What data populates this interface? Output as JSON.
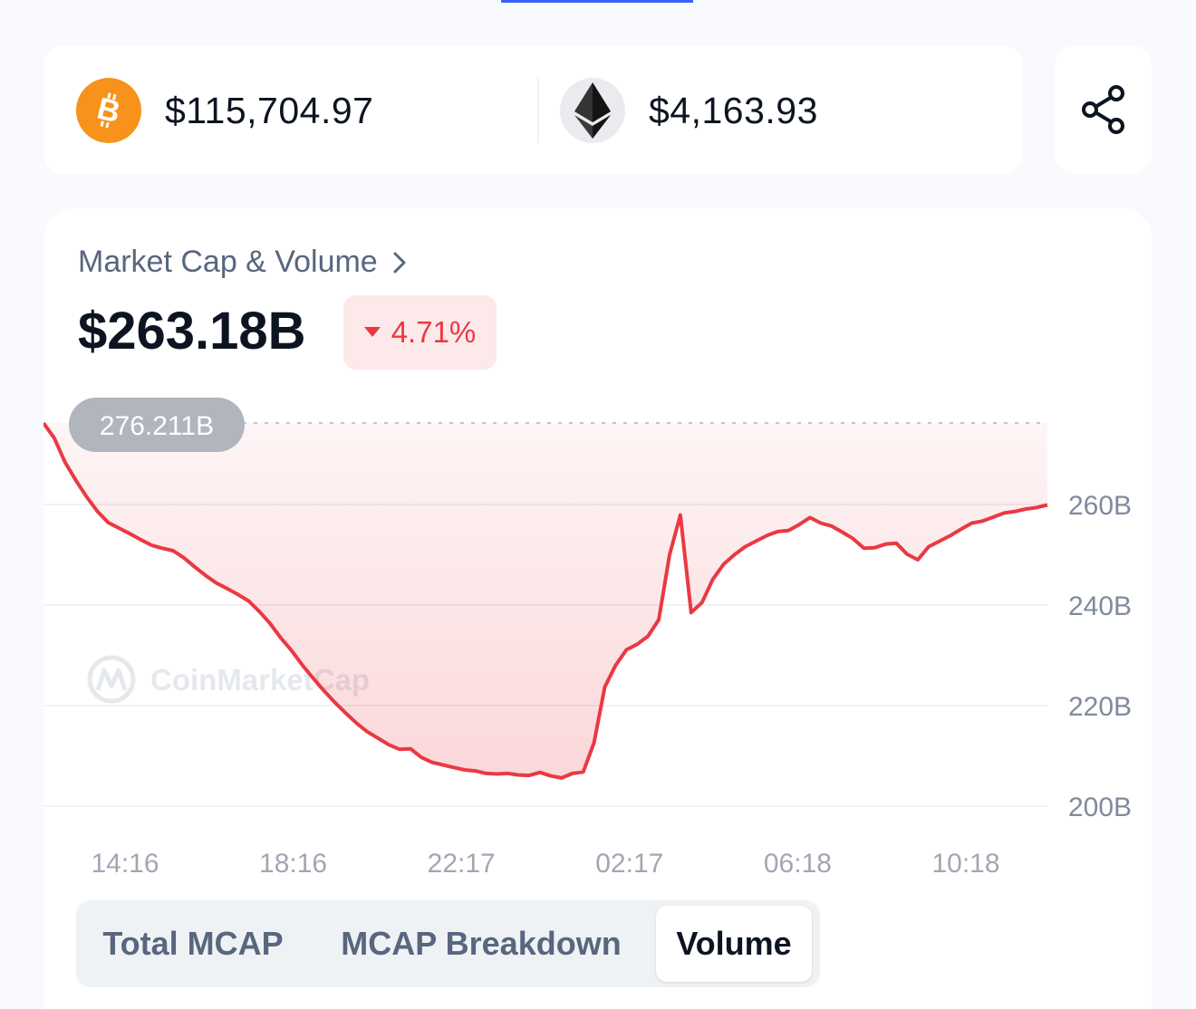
{
  "prices": {
    "btc": {
      "price": "$115,704.97",
      "icon": "bitcoin-icon",
      "color": "#f7931a"
    },
    "eth": {
      "price": "$4,163.93",
      "icon": "ethereum-icon"
    }
  },
  "share": {
    "icon": "share-icon"
  },
  "section": {
    "title": "Market Cap & Volume",
    "value": "$263.18B",
    "change": "4.71%",
    "change_direction": "down",
    "change_color": "#ea3943"
  },
  "watermark": {
    "text": "CoinMarketCap"
  },
  "chart_data": {
    "type": "area",
    "reference_label": "276.211B",
    "reference_value": 276.211,
    "ylim": [
      200,
      276.211
    ],
    "y_ticks": [
      {
        "label": "260B",
        "value": 260
      },
      {
        "label": "240B",
        "value": 240
      },
      {
        "label": "220B",
        "value": 220
      },
      {
        "label": "200B",
        "value": 200
      }
    ],
    "x_ticks": [
      "14:16",
      "18:16",
      "22:17",
      "02:17",
      "06:18",
      "10:18"
    ],
    "series": [
      {
        "values": [
          276.2,
          273.2,
          268.4,
          264.8,
          261.5,
          258.6,
          256.4,
          255.3,
          254.2,
          253.0,
          251.9,
          251.3,
          250.8,
          249.4,
          247.6,
          245.9,
          244.4,
          243.3,
          242.1,
          240.8,
          238.7,
          236.3,
          233.4,
          230.9,
          228.0,
          225.4,
          222.9,
          220.6,
          218.5,
          216.5,
          214.8,
          213.5,
          212.2,
          211.3,
          211.4,
          209.7,
          208.7,
          208.2,
          207.7,
          207.2,
          207.0,
          206.5,
          206.4,
          206.5,
          206.2,
          206.1,
          206.7,
          206.0,
          205.6,
          206.5,
          206.8,
          212.6,
          223.7,
          228.0,
          231.1,
          232.2,
          233.8,
          237.1,
          250.0,
          257.9,
          238.5,
          240.5,
          245.1,
          248.1,
          250.0,
          251.6,
          252.7,
          253.8,
          254.6,
          254.8,
          256.0,
          257.4,
          256.3,
          255.7,
          254.5,
          253.2,
          251.3,
          251.4,
          252.1,
          252.3,
          250.1,
          249.0,
          251.6,
          252.7,
          253.8,
          255.1,
          256.3,
          256.7,
          257.5,
          258.3,
          258.6,
          259.1,
          259.4,
          259.9
        ]
      }
    ],
    "line_color": "#ea3943",
    "fill_color": "#ea3943",
    "grid": true
  },
  "tabs": [
    {
      "label": "Total MCAP",
      "active": false
    },
    {
      "label": "MCAP Breakdown",
      "active": false
    },
    {
      "label": "Volume",
      "active": true
    }
  ]
}
